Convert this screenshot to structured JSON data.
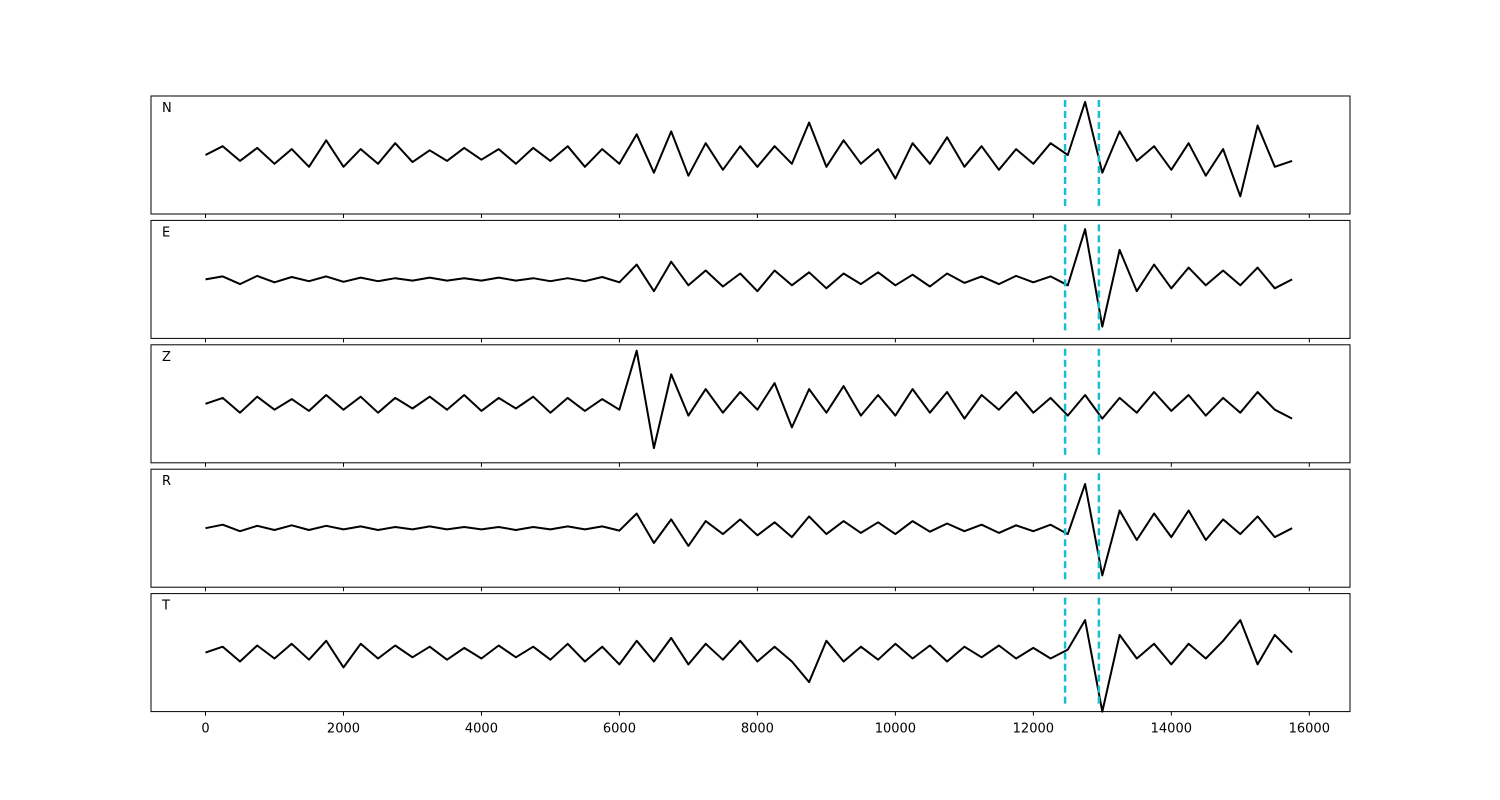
{
  "chart_data": [
    {
      "type": "line",
      "label": "N",
      "color": "#000000",
      "xlim": [
        -790,
        16590
      ],
      "ylim": [
        -1,
        1
      ],
      "xticks": [
        0,
        2000,
        4000,
        6000,
        8000,
        10000,
        12000,
        14000,
        16000
      ],
      "vlines": [
        12460,
        12950
      ],
      "vline_color": "#17becf",
      "x": [
        0,
        250,
        500,
        750,
        1000,
        1250,
        1500,
        1750,
        2000,
        2250,
        2500,
        2750,
        3000,
        3250,
        3500,
        3750,
        4000,
        4250,
        4500,
        4750,
        5000,
        5250,
        5500,
        5750,
        6000,
        6250,
        6500,
        6750,
        7000,
        7250,
        7500,
        7750,
        8000,
        8250,
        8500,
        8750,
        9000,
        9250,
        9500,
        9750,
        10000,
        10250,
        10500,
        10750,
        11000,
        11250,
        11500,
        11750,
        12000,
        12250,
        12500,
        12750,
        13000,
        13250,
        13500,
        13750,
        14000,
        14250,
        14500,
        14750,
        15000,
        15250,
        15500,
        15750
      ],
      "values": [
        0.0,
        0.15,
        -0.1,
        0.12,
        -0.15,
        0.1,
        -0.2,
        0.25,
        -0.2,
        0.1,
        -0.15,
        0.2,
        -0.12,
        0.08,
        -0.1,
        0.12,
        -0.08,
        0.1,
        -0.15,
        0.12,
        -0.1,
        0.15,
        -0.2,
        0.1,
        -0.15,
        0.35,
        -0.3,
        0.4,
        -0.35,
        0.2,
        -0.25,
        0.15,
        -0.2,
        0.15,
        -0.15,
        0.55,
        -0.2,
        0.25,
        -0.15,
        0.1,
        -0.4,
        0.2,
        -0.15,
        0.3,
        -0.2,
        0.15,
        -0.25,
        0.1,
        -0.15,
        0.2,
        0.0,
        0.9,
        -0.3,
        0.4,
        -0.1,
        0.15,
        -0.25,
        0.2,
        -0.35,
        0.1,
        -0.7,
        0.5,
        -0.2,
        -0.1
      ]
    },
    {
      "type": "line",
      "label": "E",
      "color": "#000000",
      "xlim": [
        -790,
        16590
      ],
      "ylim": [
        -1,
        1
      ],
      "xticks": [
        0,
        2000,
        4000,
        6000,
        8000,
        10000,
        12000,
        14000,
        16000
      ],
      "vlines": [
        12460,
        12950
      ],
      "vline_color": "#17becf",
      "x": [
        0,
        250,
        500,
        750,
        1000,
        1250,
        1500,
        1750,
        2000,
        2250,
        2500,
        2750,
        3000,
        3250,
        3500,
        3750,
        4000,
        4250,
        4500,
        4750,
        5000,
        5250,
        5500,
        5750,
        6000,
        6250,
        6500,
        6750,
        7000,
        7250,
        7500,
        7750,
        8000,
        8250,
        8500,
        8750,
        9000,
        9250,
        9500,
        9750,
        10000,
        10250,
        10500,
        10750,
        11000,
        11250,
        11500,
        11750,
        12000,
        12250,
        12500,
        12750,
        13000,
        13250,
        13500,
        13750,
        14000,
        14250,
        14500,
        14750,
        15000,
        15250,
        15500,
        15750
      ],
      "values": [
        0.0,
        0.05,
        -0.08,
        0.06,
        -0.05,
        0.04,
        -0.03,
        0.05,
        -0.04,
        0.03,
        -0.03,
        0.02,
        -0.02,
        0.03,
        -0.02,
        0.02,
        -0.02,
        0.03,
        -0.02,
        0.02,
        -0.03,
        0.02,
        -0.03,
        0.04,
        -0.05,
        0.25,
        -0.2,
        0.3,
        -0.1,
        0.15,
        -0.12,
        0.1,
        -0.2,
        0.15,
        -0.1,
        0.12,
        -0.15,
        0.1,
        -0.08,
        0.12,
        -0.1,
        0.08,
        -0.12,
        0.1,
        -0.06,
        0.05,
        -0.08,
        0.06,
        -0.05,
        0.05,
        -0.1,
        0.85,
        -0.8,
        0.5,
        -0.2,
        0.25,
        -0.15,
        0.2,
        -0.1,
        0.15,
        -0.1,
        0.2,
        -0.15,
        0.0
      ]
    },
    {
      "type": "line",
      "label": "Z",
      "color": "#000000",
      "xlim": [
        -790,
        16590
      ],
      "ylim": [
        -1,
        1
      ],
      "xticks": [
        0,
        2000,
        4000,
        6000,
        8000,
        10000,
        12000,
        14000,
        16000
      ],
      "vlines": [
        12460,
        12950
      ],
      "vline_color": "#17becf",
      "x": [
        0,
        250,
        500,
        750,
        1000,
        1250,
        1500,
        1750,
        2000,
        2250,
        2500,
        2750,
        3000,
        3250,
        3500,
        3750,
        4000,
        4250,
        4500,
        4750,
        5000,
        5250,
        5500,
        5750,
        6000,
        6250,
        6500,
        6750,
        7000,
        7250,
        7500,
        7750,
        8000,
        8250,
        8500,
        8750,
        9000,
        9250,
        9500,
        9750,
        10000,
        10250,
        10500,
        10750,
        11000,
        11250,
        11500,
        11750,
        12000,
        12250,
        12500,
        12750,
        13000,
        13250,
        13500,
        13750,
        14000,
        14250,
        14500,
        14750,
        15000,
        15250,
        15500,
        15750
      ],
      "values": [
        0.0,
        0.1,
        -0.15,
        0.12,
        -0.1,
        0.08,
        -0.12,
        0.15,
        -0.1,
        0.12,
        -0.15,
        0.1,
        -0.08,
        0.12,
        -0.1,
        0.15,
        -0.12,
        0.1,
        -0.08,
        0.12,
        -0.15,
        0.1,
        -0.12,
        0.08,
        -0.1,
        0.9,
        -0.75,
        0.5,
        -0.2,
        0.25,
        -0.15,
        0.2,
        -0.1,
        0.35,
        -0.4,
        0.25,
        -0.15,
        0.3,
        -0.2,
        0.15,
        -0.2,
        0.25,
        -0.15,
        0.2,
        -0.25,
        0.15,
        -0.1,
        0.2,
        -0.15,
        0.1,
        -0.2,
        0.15,
        -0.25,
        0.1,
        -0.15,
        0.2,
        -0.12,
        0.15,
        -0.2,
        0.1,
        -0.15,
        0.2,
        -0.1,
        -0.25
      ]
    },
    {
      "type": "line",
      "label": "R",
      "color": "#000000",
      "xlim": [
        -790,
        16590
      ],
      "ylim": [
        -1,
        1
      ],
      "xticks": [
        0,
        2000,
        4000,
        6000,
        8000,
        10000,
        12000,
        14000,
        16000
      ],
      "vlines": [
        12460,
        12950
      ],
      "vline_color": "#17becf",
      "x": [
        0,
        250,
        500,
        750,
        1000,
        1250,
        1500,
        1750,
        2000,
        2250,
        2500,
        2750,
        3000,
        3250,
        3500,
        3750,
        4000,
        4250,
        4500,
        4750,
        5000,
        5250,
        5500,
        5750,
        6000,
        6250,
        6500,
        6750,
        7000,
        7250,
        7500,
        7750,
        8000,
        8250,
        8500,
        8750,
        9000,
        9250,
        9500,
        9750,
        10000,
        10250,
        10500,
        10750,
        11000,
        11250,
        11500,
        11750,
        12000,
        12250,
        12500,
        12750,
        13000,
        13250,
        13500,
        13750,
        14000,
        14250,
        14500,
        14750,
        15000,
        15250,
        15500,
        15750
      ],
      "values": [
        0.0,
        0.06,
        -0.05,
        0.04,
        -0.03,
        0.05,
        -0.03,
        0.04,
        -0.02,
        0.03,
        -0.03,
        0.02,
        -0.02,
        0.03,
        -0.02,
        0.02,
        -0.02,
        0.02,
        -0.03,
        0.02,
        -0.02,
        0.03,
        -0.02,
        0.03,
        -0.04,
        0.25,
        -0.25,
        0.15,
        -0.3,
        0.12,
        -0.1,
        0.15,
        -0.12,
        0.1,
        -0.15,
        0.2,
        -0.1,
        0.12,
        -0.08,
        0.1,
        -0.1,
        0.12,
        -0.06,
        0.08,
        -0.05,
        0.06,
        -0.08,
        0.05,
        -0.05,
        0.06,
        -0.1,
        0.75,
        -0.8,
        0.3,
        -0.2,
        0.25,
        -0.15,
        0.3,
        -0.2,
        0.15,
        -0.1,
        0.2,
        -0.15,
        0.0
      ]
    },
    {
      "type": "line",
      "label": "T",
      "color": "#000000",
      "xlim": [
        -790,
        16590
      ],
      "ylim": [
        -1,
        1
      ],
      "xticks": [
        0,
        2000,
        4000,
        6000,
        8000,
        10000,
        12000,
        14000,
        16000
      ],
      "vlines": [
        12460,
        12950
      ],
      "vline_color": "#17becf",
      "x": [
        0,
        250,
        500,
        750,
        1000,
        1250,
        1500,
        1750,
        2000,
        2250,
        2500,
        2750,
        3000,
        3250,
        3500,
        3750,
        4000,
        4250,
        4500,
        4750,
        5000,
        5250,
        5500,
        5750,
        6000,
        6250,
        6500,
        6750,
        7000,
        7250,
        7500,
        7750,
        8000,
        8250,
        8500,
        8750,
        9000,
        9250,
        9500,
        9750,
        10000,
        10250,
        10500,
        10750,
        11000,
        11250,
        11500,
        11750,
        12000,
        12250,
        12500,
        12750,
        13000,
        13250,
        13500,
        13750,
        14000,
        14250,
        14500,
        14750,
        15000,
        15250,
        15500,
        15750
      ],
      "values": [
        0.0,
        0.1,
        -0.15,
        0.12,
        -0.1,
        0.15,
        -0.12,
        0.2,
        -0.25,
        0.15,
        -0.1,
        0.12,
        -0.08,
        0.1,
        -0.12,
        0.08,
        -0.1,
        0.12,
        -0.08,
        0.1,
        -0.12,
        0.15,
        -0.15,
        0.1,
        -0.2,
        0.2,
        -0.15,
        0.25,
        -0.2,
        0.15,
        -0.12,
        0.2,
        -0.15,
        0.1,
        -0.15,
        -0.5,
        0.2,
        -0.15,
        0.1,
        -0.12,
        0.15,
        -0.1,
        0.12,
        -0.15,
        0.1,
        -0.08,
        0.12,
        -0.1,
        0.08,
        -0.1,
        0.05,
        0.55,
        -1.0,
        0.3,
        -0.1,
        0.15,
        -0.2,
        0.15,
        -0.1,
        0.2,
        0.55,
        -0.2,
        0.3,
        0.0
      ]
    }
  ]
}
